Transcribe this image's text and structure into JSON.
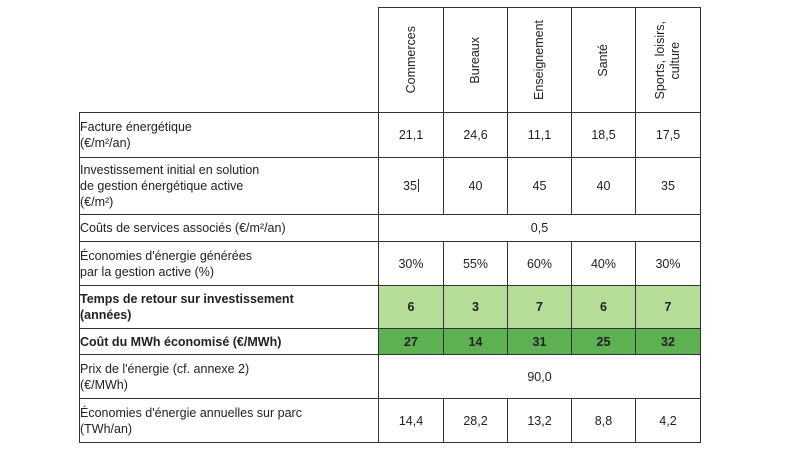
{
  "table": {
    "columns": [
      "Commerces",
      "Bureaux",
      "Enseignement",
      "Santé",
      "Sports, loisirs,\nculture"
    ],
    "rows": {
      "facture": {
        "label": "Facture énergétique\n(€/m²/an)",
        "values": [
          "21,1",
          "24,6",
          "11,1",
          "18,5",
          "17,5"
        ]
      },
      "investissement": {
        "label": "Investissement initial en solution\nde gestion énergétique active\n(€/m²)",
        "values": [
          "35",
          "40",
          "45",
          "40",
          "35"
        ]
      },
      "couts_services": {
        "label": "Coûts de services associés (€/m²/an)",
        "value": "0,5"
      },
      "economies": {
        "label": "Économies d'énergie générées\npar la gestion active (%)",
        "values": [
          "30%",
          "55%",
          "60%",
          "40%",
          "30%"
        ]
      },
      "retour": {
        "label": "Temps de retour sur investissement\n(années)",
        "values": [
          "6",
          "3",
          "7",
          "6",
          "7"
        ]
      },
      "cout_mwh": {
        "label": "Coût du MWh économisé (€/MWh)",
        "values": [
          "27",
          "14",
          "31",
          "25",
          "32"
        ]
      },
      "prix": {
        "label": "Prix de l'énergie (cf. annexe 2)\n(€/MWh)",
        "value": "90,0"
      },
      "economies_parc": {
        "label": "Économies d'énergie annuelles sur parc\n(TWh/an)",
        "values": [
          "14,4",
          "28,2",
          "13,2",
          "8,8",
          "4,2"
        ]
      }
    }
  },
  "colors": {
    "retour_fill": "#b5dd98",
    "cout_fill": "#5eb153",
    "border": "#333333"
  }
}
